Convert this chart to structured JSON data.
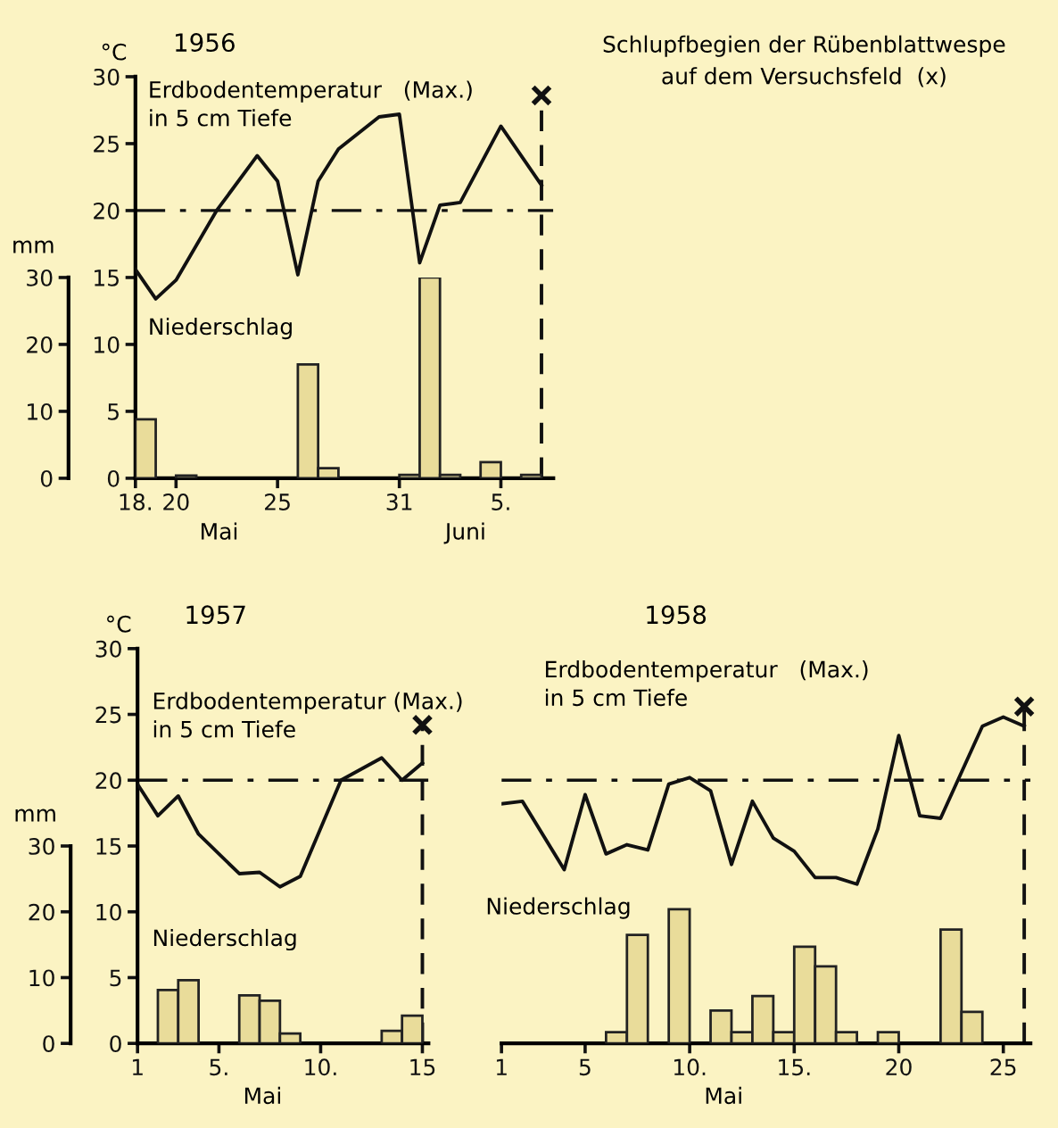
{
  "chart_data": [
    {
      "type": "line",
      "title": "1956",
      "ylabel": "°C",
      "y2label": "mm",
      "xlabel": "Mai",
      "annotations": [
        "Juni",
        "Schlupfbegien der Rübenblattwespe\nauf dem Versuchsfeld  (x)"
      ],
      "xlim": [
        "1956-05-18",
        "1956-06-07T14:00"
      ],
      "xticks": [
        {
          "value": "1956-05-18",
          "label": "18."
        },
        {
          "value": "1956-05-20",
          "label": "20"
        },
        {
          "value": "1956-05-25",
          "label": "25"
        },
        {
          "value": "1956-05-31",
          "label": "31"
        },
        {
          "value": "1956-06-05",
          "label": "5."
        }
      ],
      "ylim": [
        0,
        30
      ],
      "yticks": [
        0,
        5,
        10,
        15,
        20,
        25,
        30
      ],
      "y2lim": [
        0,
        30
      ],
      "y2ticks": [
        0,
        10,
        20,
        30
      ],
      "legend": false,
      "grid": false,
      "ref_lines": [
        {
          "axis": "y",
          "value": 20,
          "line_style": "dashdot",
          "color": "#111111"
        },
        {
          "axis": "x",
          "value": "1956-06-07",
          "line_style": "dashed",
          "color": "#111111"
        }
      ],
      "series": [
        {
          "name": "Erdbodentemperatur   (Max.)\nin 5 cm Tiefe",
          "color": "#111111",
          "x": [
            "1956-05-18",
            "1956-05-19",
            "1956-05-20",
            "1956-05-22",
            "1956-05-24",
            "1956-05-25",
            "1956-05-26",
            "1956-05-27",
            "1956-05-28",
            "1956-05-30",
            "1956-05-31",
            "1956-06-01",
            "1956-06-02",
            "1956-06-03",
            "1956-06-05",
            "1956-06-07"
          ],
          "values": [
            15.6,
            13.4,
            14.8,
            20,
            24.1,
            22.2,
            15.2,
            22.2,
            24.6,
            27.0,
            27.2,
            16.1,
            20.4,
            20.6,
            26.3,
            21.9
          ]
        },
        {
          "type": "bar",
          "axis": "y2",
          "name": "Niederschlag",
          "color": "#e9dc9a",
          "x": [
            "1956-05-18T12:00",
            "1956-05-20T12:00",
            "1956-05-26T12:00",
            "1956-05-27T12:00",
            "1956-05-31T12:00",
            "1956-06-01T12:00",
            "1956-06-02T12:00",
            "1956-06-04T12:00",
            "1956-06-06T12:00"
          ],
          "values": [
            8.8,
            0.4,
            17,
            1.5,
            0.5,
            30,
            0.5,
            2.4,
            0.5
          ]
        },
        {
          "type": "scatter",
          "marker": "cross",
          "color": "#111111",
          "x": [
            "1956-06-07"
          ],
          "values": [
            28.6
          ]
        }
      ]
    },
    {
      "type": "line",
      "title": "1957",
      "ylabel": "°C",
      "y2label": "mm",
      "xlabel": "Mai",
      "xlim": [
        1,
        15.3
      ],
      "xticks": [
        1,
        {
          "value": 5,
          "label": "5."
        },
        {
          "value": 10,
          "label": "10."
        },
        15
      ],
      "ylim": [
        0,
        30
      ],
      "yticks": [
        0,
        5,
        10,
        15,
        20,
        25,
        30
      ],
      "y2lim": [
        0,
        30
      ],
      "y2ticks": [
        0,
        10,
        20,
        30
      ],
      "legend": false,
      "grid": false,
      "ref_lines": [
        {
          "axis": "y",
          "value": 20,
          "line_style": "dashdot",
          "color": "#111111"
        },
        {
          "axis": "x",
          "value": 15,
          "line_style": "dashed",
          "color": "#111111"
        }
      ],
      "series": [
        {
          "name": "Erdbodentemperatur (Max.)\nin 5 cm Tiefe",
          "color": "#111111",
          "x": [
            1,
            2,
            3,
            4,
            6,
            7,
            8,
            9,
            11,
            13,
            14,
            15
          ],
          "values": [
            19.7,
            17.3,
            18.8,
            15.9,
            12.9,
            13.0,
            11.9,
            12.7,
            20,
            21.7,
            20,
            21.3
          ]
        },
        {
          "type": "bar",
          "axis": "y2",
          "name": "Niederschlag",
          "color": "#e9dc9a",
          "x": [
            2.5,
            3.5,
            6.5,
            7.5,
            8.5,
            13.5,
            14.5
          ],
          "values": [
            8.1,
            9.6,
            7.3,
            6.5,
            1.5,
            1.9,
            4.2
          ]
        },
        {
          "type": "scatter",
          "marker": "cross",
          "color": "#111111",
          "x": [
            15
          ],
          "values": [
            24.2
          ]
        }
      ]
    },
    {
      "type": "line",
      "title": "1958",
      "xlabel": "Mai",
      "tick_labels": "x",
      "xlim": [
        1,
        26.3
      ],
      "xticks": [
        1,
        5,
        {
          "value": 10,
          "label": "10."
        },
        {
          "value": 15,
          "label": "15."
        },
        20,
        25
      ],
      "ylim": [
        0,
        30
      ],
      "yticks": [
        0,
        5,
        10,
        15,
        20,
        25,
        30
      ],
      "y2lim": [
        0,
        30
      ],
      "y2ticks": [
        0,
        10,
        20,
        30
      ],
      "legend": false,
      "grid": false,
      "ref_lines": [
        {
          "axis": "y",
          "value": 20,
          "line_style": "dashdot",
          "color": "#111111"
        },
        {
          "axis": "x",
          "value": 26,
          "line_style": "dashed",
          "color": "#111111"
        }
      ],
      "series": [
        {
          "name": "Erdbodentemperatur   (Max.)\nin 5 cm Tiefe",
          "color": "#111111",
          "x": [
            1,
            2,
            4,
            5,
            6,
            7,
            8,
            9,
            10,
            11,
            12,
            13,
            14,
            15,
            16,
            17,
            18,
            19,
            20,
            21,
            22,
            24,
            25,
            26
          ],
          "values": [
            18.2,
            18.4,
            13.2,
            18.9,
            14.4,
            15.1,
            14.7,
            19.7,
            20.2,
            19.2,
            13.6,
            18.4,
            15.6,
            14.6,
            12.6,
            12.6,
            12.1,
            16.3,
            23.4,
            17.3,
            17.1,
            24.1,
            24.8,
            24.1
          ]
        },
        {
          "type": "bar",
          "axis": "y2",
          "name": "Niederschlag",
          "color": "#e9dc9a",
          "x": [
            6.5,
            7.5,
            9.5,
            11.5,
            12.5,
            13.5,
            14.5,
            15.5,
            16.5,
            17.5,
            19.5,
            22.5,
            23.5
          ],
          "values": [
            1.7,
            16.5,
            20.4,
            5.0,
            1.7,
            7.2,
            1.7,
            14.7,
            11.7,
            1.7,
            1.7,
            17.3,
            4.8
          ]
        },
        {
          "type": "scatter",
          "marker": "cross",
          "color": "#111111",
          "x": [
            26
          ],
          "values": [
            25.6
          ]
        }
      ]
    }
  ]
}
